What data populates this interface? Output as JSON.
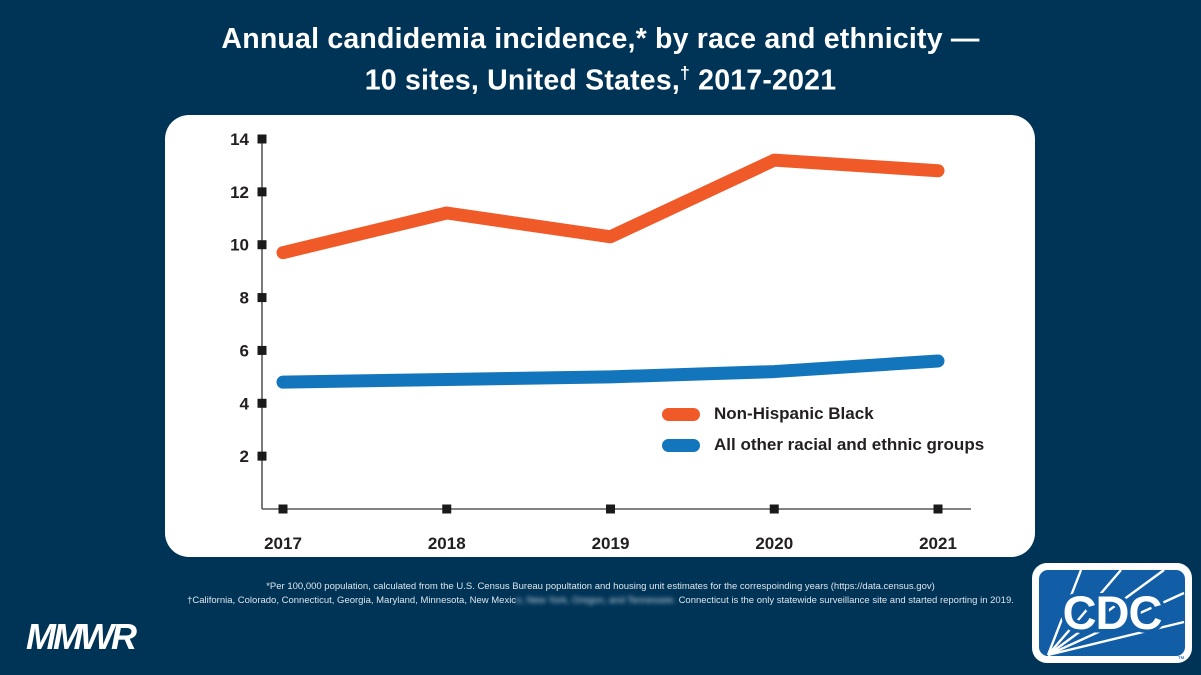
{
  "page": {
    "background": "#003457"
  },
  "title": {
    "line1": "Annual candidemia incidence,* by race and ethnicity —",
    "line2_pre": "10 sites, United States,",
    "line2_dagger": "†",
    "line2_post": " 2017-2021"
  },
  "chart_data": {
    "type": "line",
    "title": "",
    "xlabel": "",
    "ylabel": "",
    "x": [
      2017,
      2018,
      2019,
      2020,
      2021
    ],
    "series": [
      {
        "name": "Non-Hispanic Black",
        "color": "#F05A28",
        "values": [
          9.7,
          11.2,
          10.3,
          13.2,
          12.8
        ]
      },
      {
        "name": "All other racial and ethnic groups",
        "color": "#1375BC",
        "values": [
          4.8,
          4.9,
          5.0,
          5.2,
          5.6
        ]
      }
    ],
    "ylim": [
      0,
      14
    ],
    "yticks": [
      2,
      4,
      6,
      8,
      10,
      12,
      14
    ],
    "grid": false,
    "legend_position": "inside-lower-right",
    "axis_color": "#58595B",
    "tick_color": "#1A1A1A",
    "line_width": 13
  },
  "footnotes": {
    "line1": "*Per 100,000 population, calculated from the U.S. Census Bureau popultation and housing unit estimates for the correspoinding years (https://data.census.gov)",
    "line2_prefix": "†California, Colorado, Connecticut, Georgia, Maryland, Minnesota, New Mexic",
    "line2_redacted": "o, New York, Oregon, and Tennessee. ",
    "line2_suffix": "Connecticut is the only statewide surveillance site and started reporting in 2019."
  },
  "footer": {
    "mmwr": "MMWR",
    "cdc": "CDC",
    "trademark": "™",
    "cdc_blue": "#115DA6"
  }
}
